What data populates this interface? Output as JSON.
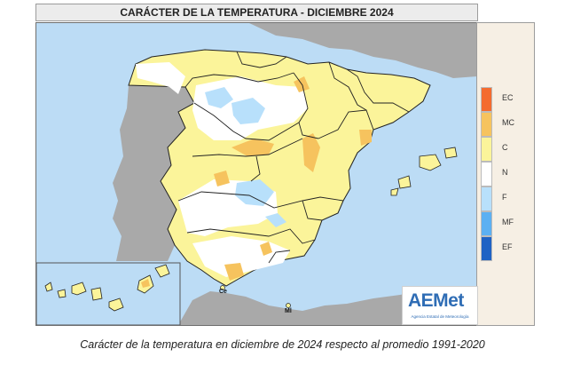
{
  "title": "CARÁCTER DE LA TEMPERATURA - DICIEMBRE 2024",
  "caption": "Carácter de la temperatura en diciembre de 2024 respecto al promedio 1991-2020",
  "legend": {
    "items": [
      {
        "code": "EC",
        "color": "#f46b2f"
      },
      {
        "code": "MC",
        "color": "#f6c35e"
      },
      {
        "code": "C",
        "color": "#fbf49a"
      },
      {
        "code": "N",
        "color": "#ffffff"
      },
      {
        "code": "F",
        "color": "#b8e0fb"
      },
      {
        "code": "MF",
        "color": "#5cb0f2"
      },
      {
        "code": "EF",
        "color": "#1f62c4"
      }
    ]
  },
  "map": {
    "city_labels": {
      "ceuta": "Ce",
      "melilla": "Ml"
    },
    "colors": {
      "sea": "#bcdcf5",
      "foreign_land": "#a9a9a9",
      "borders": "#222222"
    }
  },
  "logo": {
    "text": "AEMet",
    "subtitle": "Agencia Estatal de Meteorología"
  }
}
